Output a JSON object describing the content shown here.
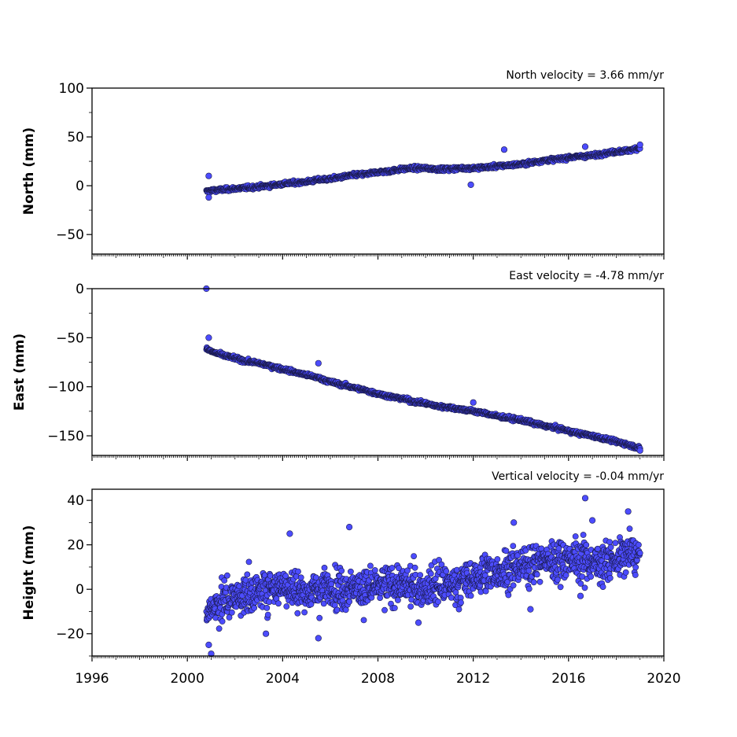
{
  "chart_data": [
    {
      "type": "scatter",
      "panel": "north",
      "ylabel": "North (mm)",
      "annotation": "North velocity = 3.66 mm/yr",
      "ylim": [
        -70,
        100
      ],
      "yticks": [
        -50,
        0,
        50,
        100
      ],
      "ytick_labels": [
        "−50",
        "0",
        "50",
        "100"
      ],
      "xlim": [
        1996,
        2020
      ],
      "grid": false,
      "marker_color": "#4c4cff",
      "series": [
        {
          "x": [
            2000.8,
            2001.0,
            2001.5,
            2002.0,
            2002.5,
            2003.0,
            2003.5,
            2004.0,
            2004.5,
            2005.0,
            2005.5,
            2006.0,
            2006.5,
            2007.0,
            2007.5,
            2008.0,
            2008.5,
            2009.0,
            2009.5,
            2010.0,
            2010.5,
            2011.0,
            2011.5,
            2012.0,
            2012.5,
            2013.0,
            2013.5,
            2014.0,
            2014.5,
            2015.0,
            2015.5,
            2016.0,
            2016.5,
            2017.0,
            2017.5,
            2018.0,
            2018.5,
            2019.0
          ],
          "y": [
            -6,
            -5,
            -4,
            -3,
            -2,
            -1,
            0,
            2,
            3,
            4,
            6,
            7,
            9,
            11,
            12,
            14,
            15,
            17,
            18,
            18,
            17,
            17,
            18,
            18,
            19,
            20,
            21,
            22,
            24,
            26,
            27,
            29,
            30,
            31,
            33,
            35,
            36,
            39
          ]
        }
      ],
      "outliers": [
        {
          "x": 2000.9,
          "y": 10
        },
        {
          "x": 2000.9,
          "y": -12
        },
        {
          "x": 2011.9,
          "y": 1
        },
        {
          "x": 2013.3,
          "y": 37
        },
        {
          "x": 2016.7,
          "y": 40
        },
        {
          "x": 2019.0,
          "y": 42
        }
      ]
    },
    {
      "type": "scatter",
      "panel": "east",
      "ylabel": "East (mm)",
      "annotation": "East velocity = -4.78 mm/yr",
      "ylim": [
        -170,
        0
      ],
      "yticks": [
        -150,
        -100,
        -50,
        0
      ],
      "ytick_labels": [
        "−150",
        "−100",
        "−50",
        "0"
      ],
      "xlim": [
        1996,
        2020
      ],
      "grid": false,
      "marker_color": "#4c4cff",
      "series": [
        {
          "x": [
            2000.8,
            2001.0,
            2001.5,
            2002.0,
            2002.5,
            2003.0,
            2003.5,
            2004.0,
            2004.5,
            2005.0,
            2005.5,
            2006.0,
            2006.5,
            2007.0,
            2007.5,
            2008.0,
            2008.5,
            2009.0,
            2009.5,
            2010.0,
            2010.5,
            2011.0,
            2011.5,
            2012.0,
            2012.5,
            2013.0,
            2013.5,
            2014.0,
            2014.5,
            2015.0,
            2015.5,
            2016.0,
            2016.5,
            2017.0,
            2017.5,
            2018.0,
            2018.5,
            2019.0
          ],
          "y": [
            -61,
            -64,
            -68,
            -71,
            -74,
            -76,
            -79,
            -82,
            -85,
            -88,
            -91,
            -95,
            -98,
            -101,
            -104,
            -107,
            -110,
            -112,
            -115,
            -117,
            -120,
            -121,
            -123,
            -125,
            -127,
            -130,
            -132,
            -134,
            -137,
            -140,
            -142,
            -145,
            -148,
            -150,
            -153,
            -156,
            -159,
            -163
          ]
        }
      ],
      "outliers": [
        {
          "x": 2000.8,
          "y": 0
        },
        {
          "x": 2000.9,
          "y": -50
        },
        {
          "x": 2005.5,
          "y": -76
        },
        {
          "x": 2012.0,
          "y": -116
        },
        {
          "x": 2019.0,
          "y": -165
        }
      ]
    },
    {
      "type": "scatter",
      "panel": "height",
      "ylabel": "Height (mm)",
      "annotation": "Vertical velocity = -0.04 mm/yr",
      "ylim": [
        -30,
        45
      ],
      "yticks": [
        -20,
        0,
        20,
        40
      ],
      "ytick_labels": [
        "−20",
        "0",
        "20",
        "40"
      ],
      "xlim": [
        1996,
        2020
      ],
      "xticks": [
        1996,
        2000,
        2004,
        2008,
        2012,
        2016,
        2020
      ],
      "xtick_labels": [
        "1996",
        "2000",
        "2004",
        "2008",
        "2012",
        "2016",
        "2020"
      ],
      "grid": false,
      "marker_color": "#4c4cff",
      "series": [
        {
          "x": [
            2000.8,
            2001.0,
            2001.5,
            2002.0,
            2002.5,
            2003.0,
            2003.5,
            2004.0,
            2004.5,
            2005.0,
            2005.5,
            2006.0,
            2006.5,
            2007.0,
            2007.5,
            2008.0,
            2008.5,
            2009.0,
            2009.5,
            2010.0,
            2010.5,
            2011.0,
            2011.5,
            2012.0,
            2012.5,
            2013.0,
            2013.5,
            2014.0,
            2014.5,
            2015.0,
            2015.5,
            2016.0,
            2016.5,
            2017.0,
            2017.5,
            2018.0,
            2018.5,
            2019.0
          ],
          "y": [
            -12,
            -8,
            -5,
            -4,
            -2,
            -1,
            1,
            2,
            0,
            -2,
            0,
            1,
            0,
            1,
            0,
            1,
            2,
            2,
            1,
            0,
            2,
            2,
            3,
            5,
            7,
            8,
            9,
            10,
            12,
            13,
            13,
            14,
            13,
            12,
            12,
            13,
            16,
            15
          ]
        }
      ],
      "outliers": [
        {
          "x": 2000.9,
          "y": -25
        },
        {
          "x": 2001.0,
          "y": -29
        },
        {
          "x": 2003.3,
          "y": -20
        },
        {
          "x": 2004.3,
          "y": 25
        },
        {
          "x": 2005.5,
          "y": -22
        },
        {
          "x": 2006.8,
          "y": 28
        },
        {
          "x": 2009.7,
          "y": -15
        },
        {
          "x": 2013.7,
          "y": 30
        },
        {
          "x": 2014.4,
          "y": -9
        },
        {
          "x": 2016.5,
          "y": -3
        },
        {
          "x": 2016.7,
          "y": 41
        },
        {
          "x": 2017.0,
          "y": 31
        },
        {
          "x": 2018.5,
          "y": 35
        }
      ]
    }
  ]
}
